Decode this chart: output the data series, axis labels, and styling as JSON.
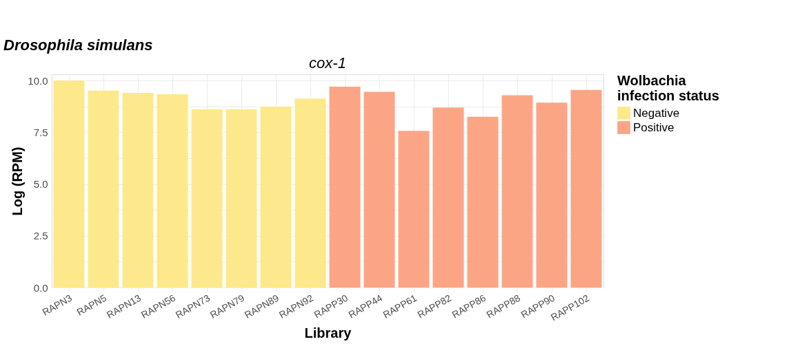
{
  "chart_data": {
    "type": "bar",
    "title": "Drosophila simulans",
    "subtitle": "cox-1",
    "xlabel": "Library",
    "ylabel": "Log (RPM)",
    "legend_title": "Wolbachia infection status",
    "categories": [
      "RAPN3",
      "RAPN5",
      "RAPN13",
      "RAPN56",
      "RAPN73",
      "RAPN79",
      "RAPN89",
      "RAPN92",
      "RAPP30",
      "RAPP44",
      "RAPP61",
      "RAPP82",
      "RAPP86",
      "RAPP88",
      "RAPP90",
      "RAPP102"
    ],
    "series": [
      {
        "name": "Negative",
        "color": "#fde98c",
        "values": [
          10.0,
          9.51,
          9.4,
          9.34,
          8.61,
          8.61,
          8.74,
          9.13,
          null,
          null,
          null,
          null,
          null,
          null,
          null,
          null
        ]
      },
      {
        "name": "Positive",
        "color": "#fca584",
        "values": [
          null,
          null,
          null,
          null,
          null,
          null,
          null,
          null,
          9.7,
          9.45,
          7.57,
          8.69,
          8.25,
          9.29,
          8.93,
          9.54
        ]
      }
    ],
    "ylim": [
      0,
      10.3
    ],
    "yticks": [
      {
        "value": 0,
        "label": "0.0"
      },
      {
        "value": 1.25,
        "label": null
      },
      {
        "value": 2.5,
        "label": "2.5"
      },
      {
        "value": 3.75,
        "label": null
      },
      {
        "value": 5,
        "label": "5.0"
      },
      {
        "value": 6.25,
        "label": null
      },
      {
        "value": 7.5,
        "label": "7.5"
      },
      {
        "value": 8.75,
        "label": null
      },
      {
        "value": 10,
        "label": "10.0"
      }
    ],
    "grid": true,
    "legend": "right"
  }
}
